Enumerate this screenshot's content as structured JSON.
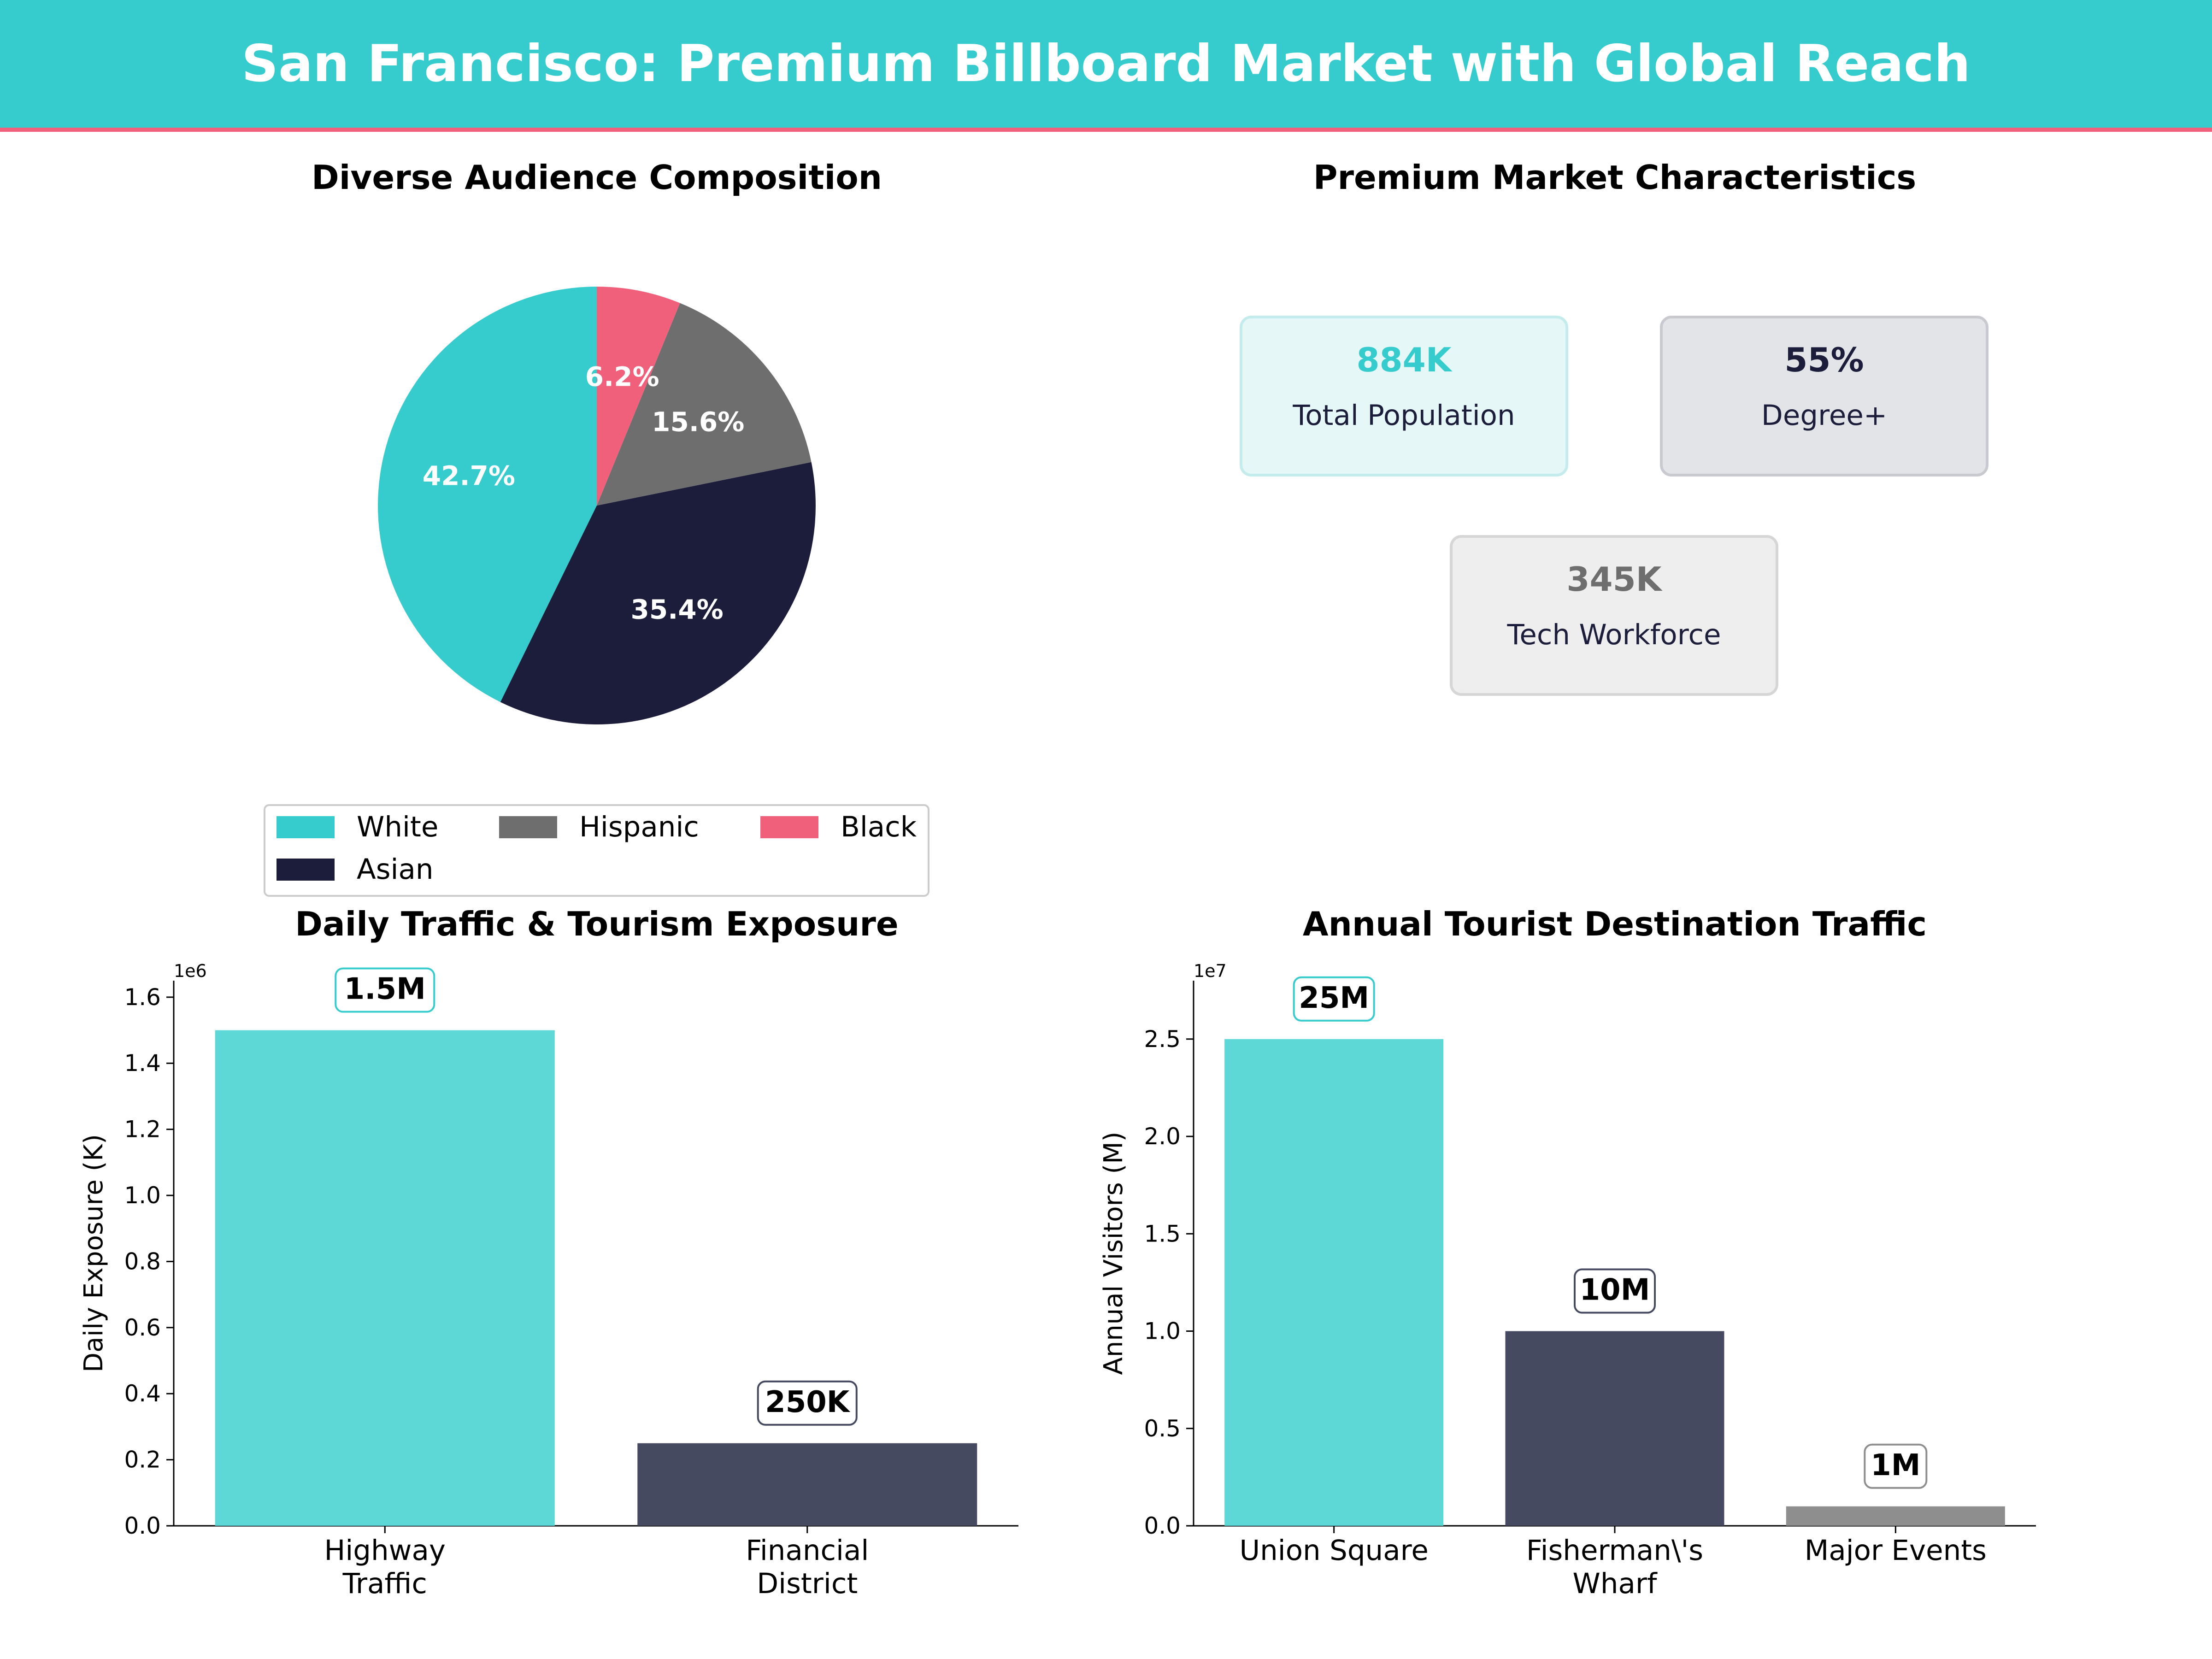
{
  "header": {
    "title": "San Francisco: Premium Billboard Market with Global Reach"
  },
  "colors": {
    "banner": "#36CCCE",
    "banner_border": "#F0607A",
    "teal": "#36CCCE",
    "teal_bar": "#5DD8D6",
    "navy": "#1B1D3A",
    "slate": "#454A60",
    "gray": "#6E6E6E",
    "light_gray_bar": "#8E8E8E",
    "pink": "#F0607A"
  },
  "chart_data": [
    {
      "type": "pie",
      "title": "Diverse Audience Composition",
      "categories": [
        "White",
        "Asian",
        "Hispanic",
        "Black"
      ],
      "values": [
        42.7,
        35.4,
        15.6,
        6.2
      ],
      "labels": [
        "42.7%",
        "35.4%",
        "15.6%",
        "6.2%"
      ],
      "colors": [
        "#36CCCE",
        "#1B1D3A",
        "#6E6E6E",
        "#F0607A"
      ],
      "legend": "bottom"
    },
    {
      "type": "table",
      "title": "Premium Market Characteristics",
      "cards": [
        {
          "value": "884K",
          "label": "Total Population",
          "value_color": "#36CCCE",
          "bg": "#E5F7F7",
          "border": "#C5ECEC"
        },
        {
          "value": "55%",
          "label": "Degree+",
          "value_color": "#1B1D3A",
          "bg": "#E3E4E8",
          "border": "#C9CACF"
        },
        {
          "value": "345K",
          "label": "Tech Workforce",
          "value_color": "#6E6E6E",
          "bg": "#EEEEEE",
          "border": "#D6D6D6"
        }
      ]
    },
    {
      "type": "bar",
      "title": "Daily Traffic & Tourism Exposure",
      "categories": [
        "Highway\nTraffic",
        "Financial\nDistrict"
      ],
      "values": [
        1500000,
        250000
      ],
      "value_labels": [
        "1.5M",
        "250K"
      ],
      "colors": [
        "#5DD8D6",
        "#454A60"
      ],
      "label_borders": [
        "#36CCCE",
        "#454A60"
      ],
      "ylabel": "Daily Exposure (K)",
      "offset_label": "1e6",
      "ylim": [
        0,
        1650000
      ],
      "yticks": [
        0,
        200000,
        400000,
        600000,
        800000,
        1000000,
        1200000,
        1400000,
        1600000
      ],
      "ytick_labels": [
        "0.0",
        "0.2",
        "0.4",
        "0.6",
        "0.8",
        "1.0",
        "1.2",
        "1.4",
        "1.6"
      ]
    },
    {
      "type": "bar",
      "title": "Annual Tourist Destination Traffic",
      "categories": [
        "Union Square",
        "Fisherman\\'s\nWharf",
        "Major Events"
      ],
      "values": [
        25000000,
        10000000,
        1000000
      ],
      "value_labels": [
        "25M",
        "10M",
        "1M"
      ],
      "colors": [
        "#5DD8D6",
        "#454A60",
        "#8E8E8E"
      ],
      "label_borders": [
        "#36CCCE",
        "#454A60",
        "#8E8E8E"
      ],
      "ylabel": "Annual Visitors (M)",
      "offset_label": "1e7",
      "ylim": [
        0,
        28000000
      ],
      "yticks": [
        0,
        5000000,
        10000000,
        15000000,
        20000000,
        25000000
      ],
      "ytick_labels": [
        "0.0",
        "0.5",
        "1.0",
        "1.5",
        "2.0",
        "2.5"
      ]
    }
  ]
}
